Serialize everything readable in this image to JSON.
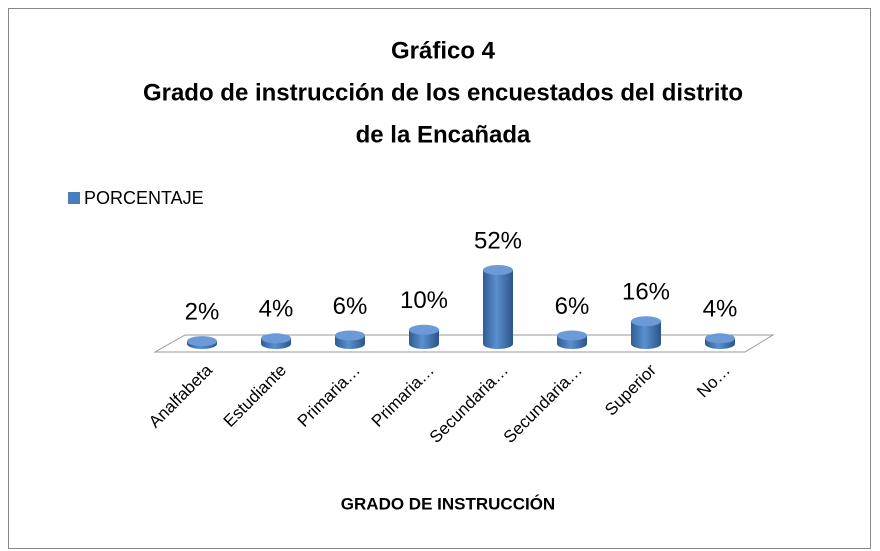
{
  "chart_data": {
    "type": "bar3d",
    "title": [
      "Gráfico 4",
      "Grado de instrucción de los encuestados del distrito",
      "de la Encañada"
    ],
    "x_label": "GRADO DE INSTRUCCIÓN",
    "categories": [
      "Analfabeta",
      "Estudiante",
      "Primaria…",
      "Primaria…",
      "Secundaria…",
      "Secundaria…",
      "Superior",
      "No…"
    ],
    "series": [
      {
        "name": "PORCENTAJE",
        "color": "#4a7ebb",
        "values": [
          2,
          4,
          6,
          10,
          52,
          6,
          16,
          4
        ],
        "value_labels": [
          "2%",
          "4%",
          "6%",
          "10%",
          "52%",
          "6%",
          "16%",
          "4%"
        ]
      }
    ],
    "legend": "top-left"
  }
}
